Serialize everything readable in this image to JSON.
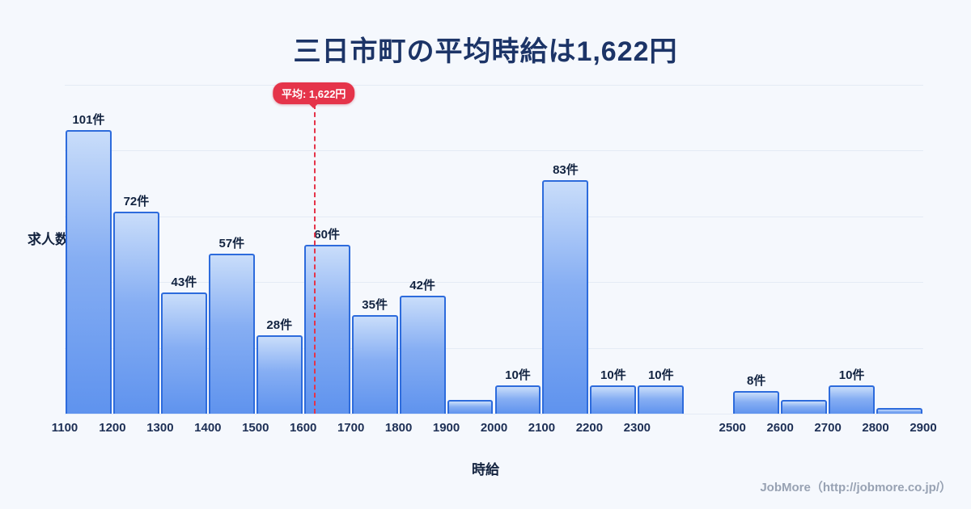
{
  "title": "三日市町の平均時給は1,622円",
  "footer": "JobMore（http://jobmore.co.jp/）",
  "chart_data": {
    "type": "bar",
    "title": "三日市町の平均時給は1,622円",
    "xlabel": "時給",
    "ylabel": "求人数",
    "x_min": 1100,
    "x_max": 2900,
    "ylim": [
      0,
      117
    ],
    "grid": true,
    "x_ticks": [
      "1100",
      "1200",
      "1300",
      "1400",
      "1500",
      "1600",
      "1700",
      "1800",
      "1900",
      "2000",
      "2100",
      "2200",
      "2300",
      "2500",
      "2600",
      "2700",
      "2800",
      "2900"
    ],
    "bins": [
      {
        "start": 1100,
        "end": 1200,
        "value": 101,
        "label": "101件"
      },
      {
        "start": 1200,
        "end": 1300,
        "value": 72,
        "label": "72件"
      },
      {
        "start": 1300,
        "end": 1400,
        "value": 43,
        "label": "43件"
      },
      {
        "start": 1400,
        "end": 1500,
        "value": 57,
        "label": "57件"
      },
      {
        "start": 1500,
        "end": 1600,
        "value": 28,
        "label": "28件"
      },
      {
        "start": 1600,
        "end": 1700,
        "value": 60,
        "label": "60件"
      },
      {
        "start": 1700,
        "end": 1800,
        "value": 35,
        "label": "35件"
      },
      {
        "start": 1800,
        "end": 1900,
        "value": 42,
        "label": "42件"
      },
      {
        "start": 1900,
        "end": 2000,
        "value": 5,
        "label": ""
      },
      {
        "start": 2000,
        "end": 2100,
        "value": 10,
        "label": "10件"
      },
      {
        "start": 2100,
        "end": 2200,
        "value": 83,
        "label": "83件"
      },
      {
        "start": 2200,
        "end": 2300,
        "value": 10,
        "label": "10件"
      },
      {
        "start": 2300,
        "end": 2400,
        "value": 10,
        "label": "10件"
      },
      {
        "start": 2500,
        "end": 2600,
        "value": 8,
        "label": "8件"
      },
      {
        "start": 2600,
        "end": 2700,
        "value": 5,
        "label": ""
      },
      {
        "start": 2700,
        "end": 2800,
        "value": 10,
        "label": "10件"
      },
      {
        "start": 2800,
        "end": 2900,
        "value": 2,
        "label": ""
      }
    ],
    "average_line": {
      "x": 1622,
      "label": "平均: 1,622円"
    },
    "colors": {
      "background": "#f5f8fd",
      "bar_fill_top": "#c9ddfa",
      "bar_fill_bottom": "#5f93ee",
      "bar_border": "#2d6bdc",
      "average": "#e5344a",
      "title_text": "#1c3467",
      "gridline": "#e4ebf5"
    }
  }
}
